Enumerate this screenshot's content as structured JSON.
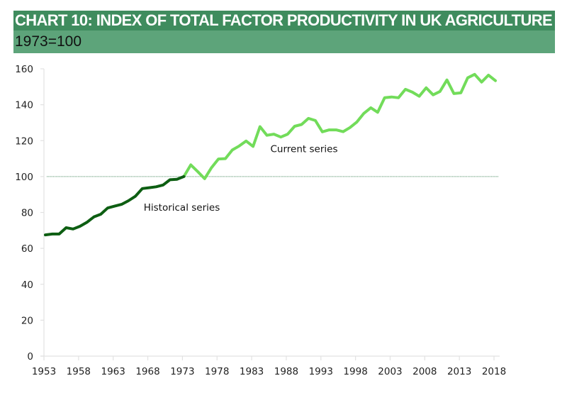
{
  "header": {
    "title": "CHART 10: INDEX OF TOTAL FACTOR PRODUCTIVITY IN UK AGRICULTURE",
    "subtitle": "1973=100"
  },
  "colors": {
    "title_bg": "#3f8c5e",
    "subtitle_bg": "#5da47a",
    "historical": "#0d5e12",
    "current": "#72dc5a",
    "reference_line": "#7aa98a",
    "axis": "#e2e2e2"
  },
  "chart_data": {
    "type": "line",
    "title": "CHART 10: INDEX OF TOTAL FACTOR PRODUCTIVITY IN UK AGRICULTURE",
    "subtitle": "1973=100",
    "xlabel": "",
    "ylabel": "",
    "xlim": [
      1953,
      2018
    ],
    "ylim": [
      0,
      160
    ],
    "x_ticks": [
      1953,
      1958,
      1963,
      1968,
      1973,
      1978,
      1983,
      1988,
      1993,
      1998,
      2003,
      2008,
      2013,
      2018
    ],
    "y_ticks": [
      0,
      20,
      40,
      60,
      80,
      100,
      120,
      140,
      160
    ],
    "grid": false,
    "reference_line": {
      "y": 100,
      "style": "dotted"
    },
    "annotations": [
      {
        "text": "Historical series",
        "x": 1967.2,
        "y": 81
      },
      {
        "text": "Current series",
        "x": 1985.5,
        "y": 113.5
      }
    ],
    "series": [
      {
        "name": "Historical series",
        "x": [
          1953,
          1954,
          1955,
          1956,
          1957,
          1958,
          1959,
          1960,
          1961,
          1962,
          1963,
          1964,
          1965,
          1966,
          1967,
          1968,
          1969,
          1970,
          1971,
          1972,
          1973
        ],
        "values": [
          67.5,
          68.0,
          68.0,
          71.5,
          70.8,
          72.3,
          74.5,
          77.5,
          79.0,
          82.5,
          83.5,
          84.5,
          86.5,
          89.0,
          93.3,
          93.8,
          94.3,
          95.3,
          98.2,
          98.5,
          100.0
        ]
      },
      {
        "name": "Current series",
        "x": [
          1973,
          1974,
          1975,
          1976,
          1977,
          1978,
          1979,
          1980,
          1981,
          1982,
          1983,
          1984,
          1985,
          1986,
          1987,
          1988,
          1989,
          1990,
          1991,
          1992,
          1993,
          1994,
          1995,
          1996,
          1997,
          1998,
          1999,
          2000,
          2001,
          2002,
          2003,
          2004,
          2005,
          2006,
          2007,
          2008,
          2009,
          2010,
          2011,
          2012,
          2013,
          2014,
          2015,
          2016,
          2017,
          2018
        ],
        "values": [
          100.0,
          106.5,
          102.8,
          98.8,
          105.0,
          109.8,
          110.0,
          114.8,
          117.0,
          119.8,
          116.8,
          127.8,
          123.0,
          123.6,
          122.0,
          123.6,
          128.0,
          129.0,
          132.4,
          131.2,
          124.9,
          126.0,
          126.0,
          125.0,
          127.3,
          130.4,
          135.2,
          138.3,
          135.8,
          143.9,
          144.3,
          143.9,
          148.6,
          147.0,
          144.7,
          149.4,
          145.5,
          147.4,
          153.8,
          146.2,
          146.6,
          155.0,
          156.9,
          152.6,
          156.5,
          153.4
        ]
      }
    ]
  }
}
